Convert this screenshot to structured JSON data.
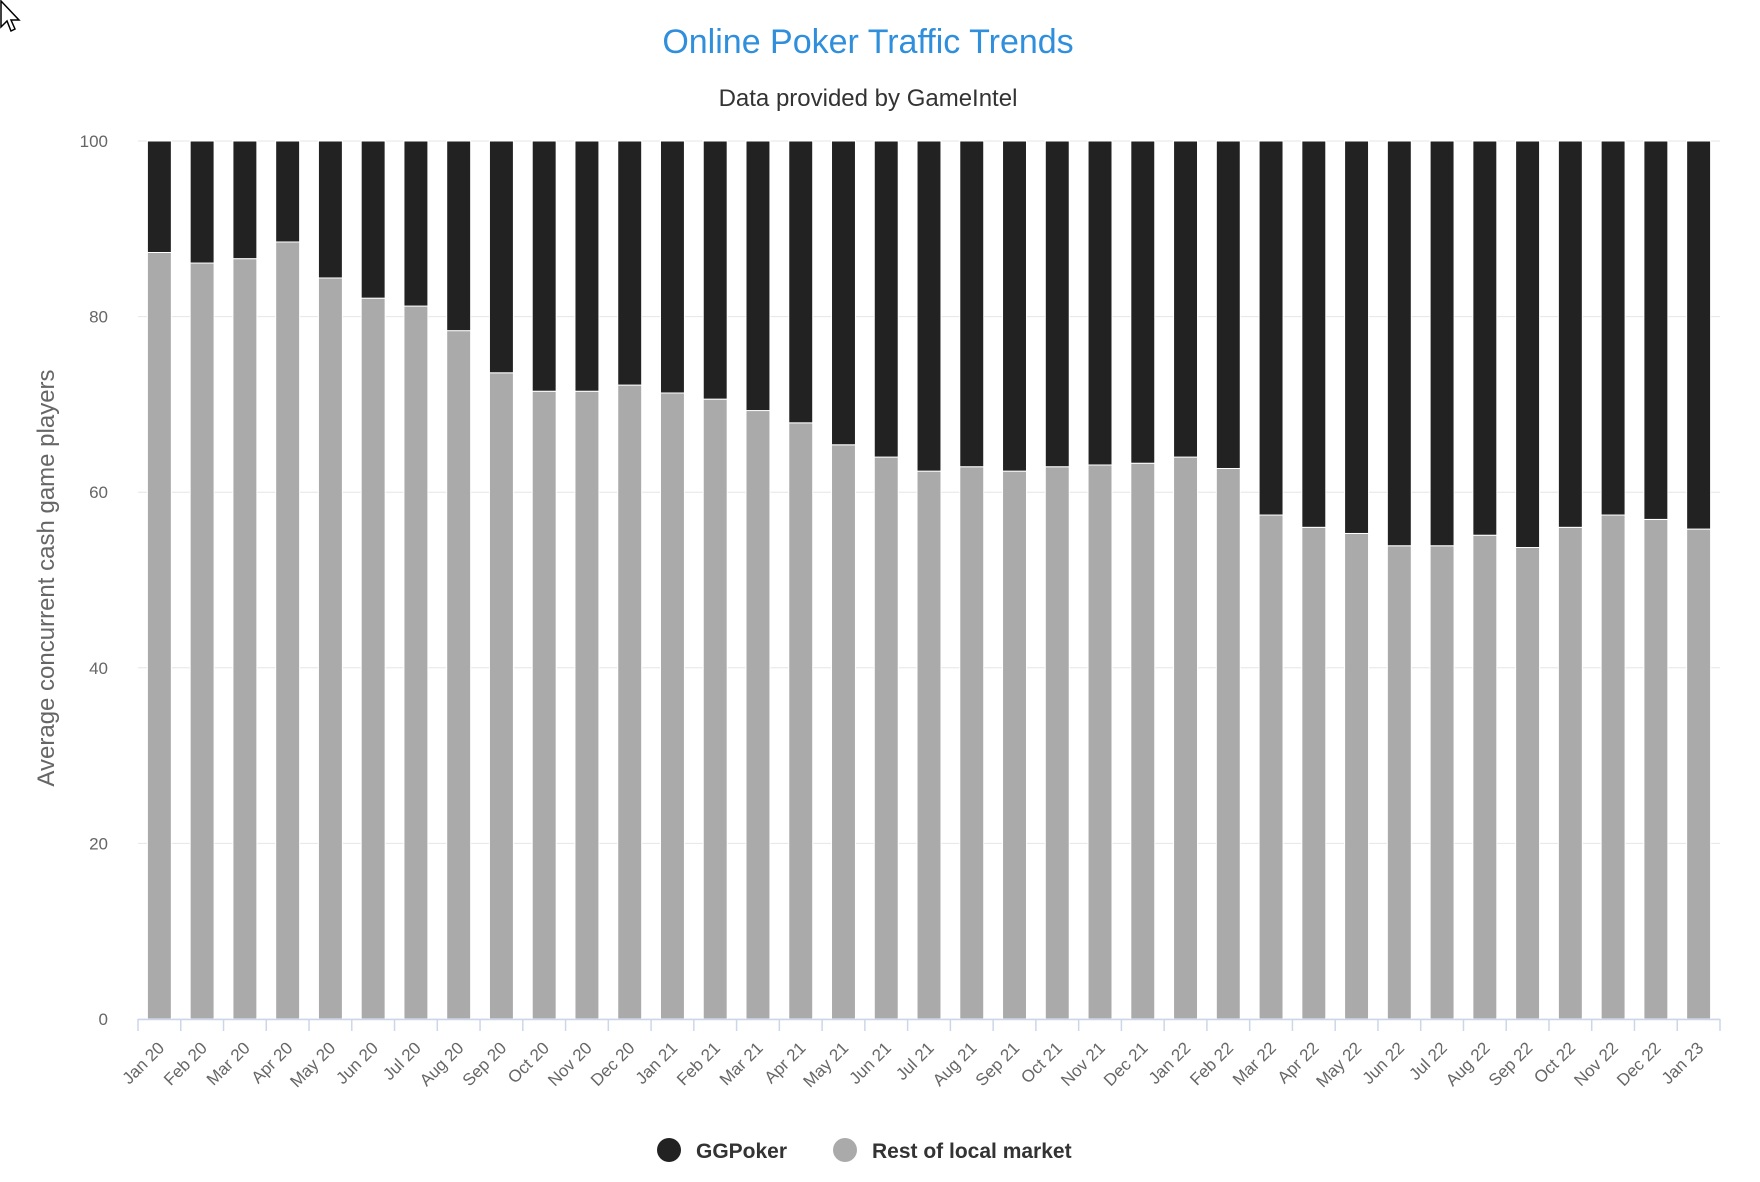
{
  "chart_data": {
    "type": "bar",
    "stacked": true,
    "title": "Online Poker Traffic Trends",
    "subtitle": "Data provided by GameIntel",
    "ylabel": "Average concurrent cash game players",
    "xlabel": "",
    "ylim": [
      0,
      100
    ],
    "yticks": [
      0,
      20,
      40,
      60,
      80,
      100
    ],
    "grid": true,
    "legend_position": "bottom-center",
    "categories": [
      "Jan 20",
      "Feb 20",
      "Mar 20",
      "Apr 20",
      "May 20",
      "Jun 20",
      "Jul 20",
      "Aug 20",
      "Sep 20",
      "Oct 20",
      "Nov 20",
      "Dec 20",
      "Jan 21",
      "Feb 21",
      "Mar 21",
      "Apr 21",
      "May 21",
      "Jun 21",
      "Jul 21",
      "Aug 21",
      "Sep 21",
      "Oct 21",
      "Nov 21",
      "Dec 21",
      "Jan 22",
      "Feb 22",
      "Mar 22",
      "Apr 22",
      "May 22",
      "Jun 22",
      "Jul 22",
      "Aug 22",
      "Sep 22",
      "Oct 22",
      "Nov 22",
      "Dec 22",
      "Jan 23"
    ],
    "series": [
      {
        "name": "GGPoker",
        "color": "#222222",
        "values": [
          12.7,
          13.9,
          13.4,
          11.5,
          15.6,
          17.9,
          18.8,
          21.6,
          26.4,
          28.5,
          28.5,
          27.8,
          28.7,
          29.4,
          30.7,
          32.1,
          34.6,
          36.0,
          37.6,
          37.1,
          37.6,
          37.1,
          36.9,
          36.7,
          36.0,
          37.3,
          42.6,
          44.0,
          44.7,
          46.1,
          46.1,
          44.9,
          46.3,
          44.0,
          42.6,
          43.1,
          44.2
        ]
      },
      {
        "name": "Rest of local market",
        "color": "#aaaaaa",
        "values": [
          87.3,
          86.1,
          86.6,
          88.5,
          84.4,
          82.1,
          81.2,
          78.4,
          73.6,
          71.5,
          71.5,
          72.2,
          71.3,
          70.6,
          69.3,
          67.9,
          65.4,
          64.0,
          62.4,
          62.9,
          62.4,
          62.9,
          63.1,
          63.3,
          64.0,
          62.7,
          57.4,
          56.0,
          55.3,
          53.9,
          53.9,
          55.1,
          53.7,
          56.0,
          57.4,
          56.9,
          55.8
        ]
      }
    ]
  }
}
